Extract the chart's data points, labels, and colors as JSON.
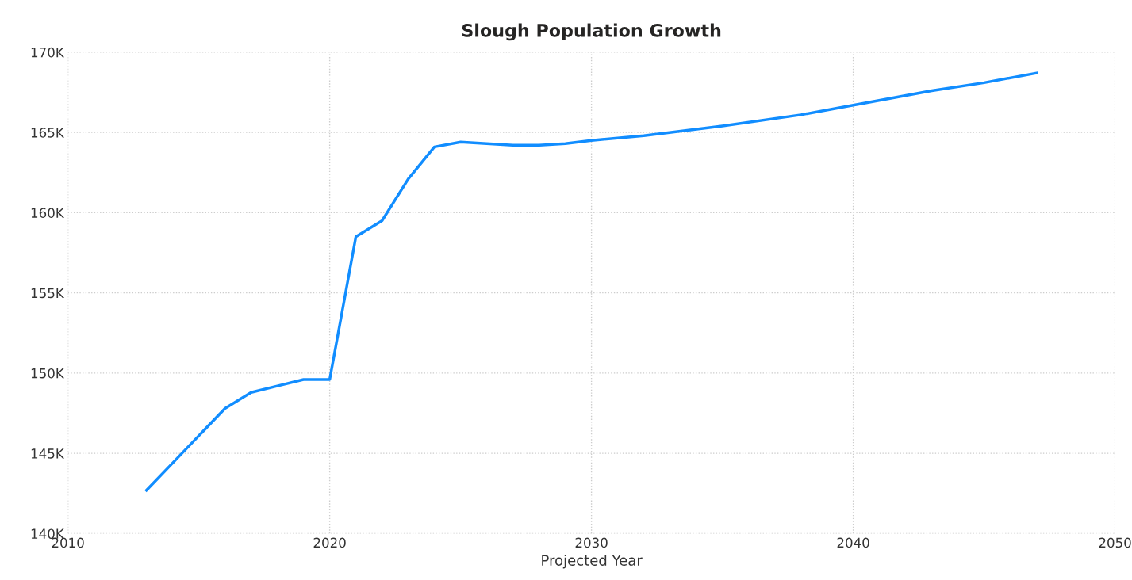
{
  "chart_data": {
    "type": "line",
    "title": "Slough Population Growth",
    "xlabel": "Projected Year",
    "x": [
      2013,
      2014,
      2015,
      2016,
      2017,
      2018,
      2019,
      2020,
      2021,
      2022,
      2023,
      2024,
      2025,
      2026,
      2027,
      2028,
      2029,
      2030,
      2032,
      2035,
      2038,
      2040,
      2043,
      2045,
      2047
    ],
    "series": [
      {
        "color": "#118dff",
        "values": [
          142700,
          144400,
          146100,
          147800,
          148800,
          149200,
          149600,
          149600,
          158500,
          159500,
          162100,
          164100,
          164400,
          164300,
          164200,
          164200,
          164300,
          164500,
          164800,
          165400,
          166100,
          166700,
          167600,
          168100,
          168700
        ]
      }
    ],
    "xlim": [
      2010,
      2050
    ],
    "xticks": [
      2010,
      2020,
      2030,
      2040,
      2050
    ],
    "ylim": [
      140000,
      170000
    ],
    "yticks": [
      {
        "value": 140000,
        "label": "140K"
      },
      {
        "value": 145000,
        "label": "145K"
      },
      {
        "value": 150000,
        "label": "150K"
      },
      {
        "value": 155000,
        "label": "155K"
      },
      {
        "value": 160000,
        "label": "160K"
      },
      {
        "value": 165000,
        "label": "165K"
      },
      {
        "value": 170000,
        "label": "170K"
      }
    ],
    "grid": true,
    "marker": "none",
    "line_style": "solid"
  }
}
